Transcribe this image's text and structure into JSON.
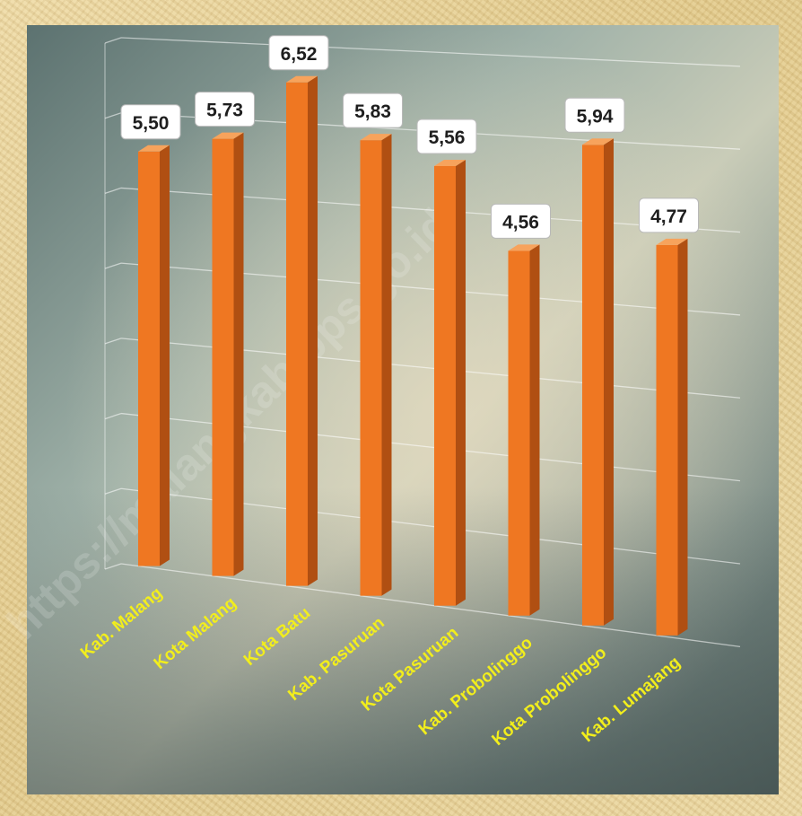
{
  "watermark": "https://malangkab.bps.go.id",
  "colors": {
    "bar_front": "#ef7722",
    "bar_side": "#b04f12",
    "bar_top": "#f7a35c",
    "category_label": "#f2ee1c"
  },
  "chart_data": {
    "type": "bar",
    "categories": [
      "Kab. Malang",
      "Kota Malang",
      "Kota Batu",
      "Kab. Pasuruan",
      "Kota Pasuruan",
      "Kab. Probolinggo",
      "Kota Probolinggo",
      "Kab. Lumajang"
    ],
    "values": [
      5.5,
      5.73,
      6.52,
      5.83,
      5.56,
      4.56,
      5.94,
      4.77
    ],
    "value_labels": [
      "5,50",
      "5,73",
      "6,52",
      "5,83",
      "5,56",
      "4,56",
      "5,94",
      "4,77"
    ],
    "title": "",
    "xlabel": "",
    "ylabel": "",
    "ylim": [
      0,
      7
    ],
    "grid": true,
    "style": "3d-perspective"
  }
}
